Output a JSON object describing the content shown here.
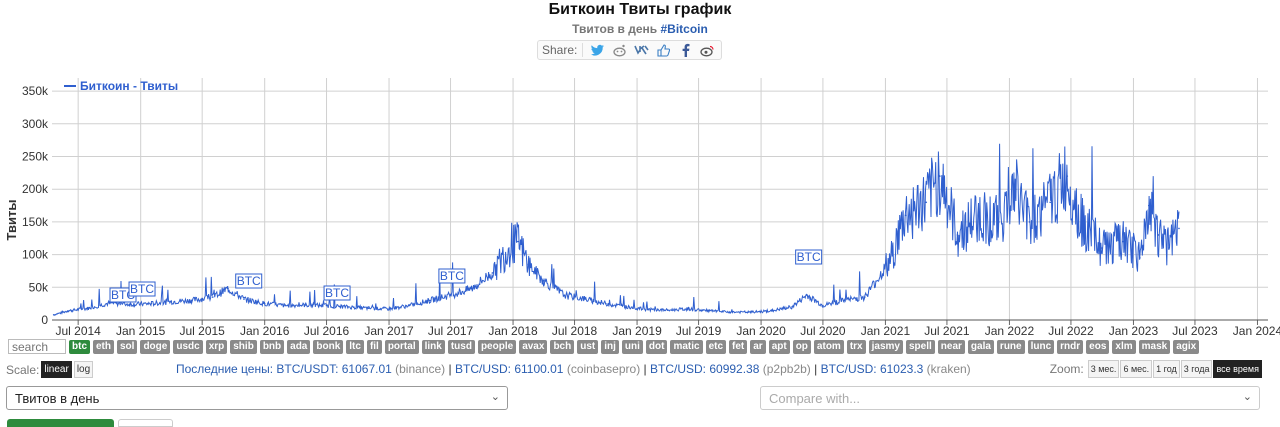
{
  "page": {
    "title": "Биткоин Твиты график",
    "subtitle_prefix": "Твитов в день",
    "subtitle_tag": "#Bitcoin",
    "share_label": "Share:",
    "share_icons": [
      "twitter-icon",
      "reddit-icon",
      "vk-icon",
      "like-icon",
      "facebook-icon",
      "weibo-icon"
    ]
  },
  "coins": {
    "search_placeholder": "search",
    "items": [
      "btc",
      "eth",
      "sol",
      "doge",
      "usdc",
      "xrp",
      "shib",
      "bnb",
      "ada",
      "bonk",
      "ltc",
      "fil",
      "portal",
      "link",
      "tusd",
      "people",
      "avax",
      "bch",
      "ust",
      "inj",
      "uni",
      "dot",
      "matic",
      "etc",
      "fet",
      "ar",
      "apt",
      "op",
      "atom",
      "trx",
      "jasmy",
      "spell",
      "near",
      "gala",
      "rune",
      "lunc",
      "rndr",
      "eos",
      "xlm",
      "mask",
      "agix"
    ],
    "active": "btc"
  },
  "scale": {
    "label": "Scale:",
    "linear": "linear",
    "log": "log",
    "selected": "linear"
  },
  "prices": {
    "label": "Последние цены:",
    "quotes": [
      {
        "pair": "BTC/USDT: 61067.01",
        "exchange": "(binance)"
      },
      {
        "pair": "BTC/USD: 61100.01",
        "exchange": "(coinbasepro)"
      },
      {
        "pair": "BTC/USD: 60992.38",
        "exchange": "(p2pb2b)"
      },
      {
        "pair": "BTC/USD: 61023.3",
        "exchange": "(kraken)"
      }
    ]
  },
  "zoom": {
    "label": "Zoom:",
    "options": [
      "3 мес.",
      "6 мес.",
      "1 год",
      "3 года",
      "все время"
    ],
    "selected": "все время"
  },
  "selects": {
    "metric": "Твитов в день",
    "compare_placeholder": "Compare with..."
  },
  "chart_data": {
    "type": "line",
    "legend": "Биткоин - Твиты",
    "ylabel": "Твиты",
    "ylim": [
      0,
      370000
    ],
    "yticks": [
      0,
      50000,
      100000,
      150000,
      200000,
      250000,
      300000,
      350000
    ],
    "ytick_labels": [
      "0",
      "50k",
      "100k",
      "150k",
      "200k",
      "250k",
      "300k",
      "350k"
    ],
    "xlim": [
      "2014-04-15",
      "2024-02-01"
    ],
    "xticks": [
      "2014-07-01",
      "2015-01-01",
      "2015-07-01",
      "2016-01-01",
      "2016-07-01",
      "2017-01-01",
      "2017-07-01",
      "2018-01-01",
      "2018-07-01",
      "2019-01-01",
      "2019-07-01",
      "2020-01-01",
      "2020-07-01",
      "2021-01-01",
      "2021-07-01",
      "2022-01-01",
      "2022-07-01",
      "2023-01-01",
      "2023-07-01",
      "2024-01-01"
    ],
    "xtick_labels": [
      "Jul 2014",
      "Jan 2015",
      "Jul 2015",
      "Jan 2016",
      "Jul 2016",
      "Jan 2017",
      "Jul 2017",
      "Jan 2018",
      "Jul 2018",
      "Jan 2019",
      "Jul 2019",
      "Jan 2020",
      "Jul 2020",
      "Jan 2021",
      "Jul 2021",
      "Jan 2022",
      "Jul 2022",
      "Jan 2023",
      "Jul 2023",
      "Jan 2024"
    ],
    "series": [
      {
        "name": "Биткоин - Твиты",
        "x": [
          "2014-04-20",
          "2014-06-01",
          "2014-08-01",
          "2014-10-01",
          "2014-12-01",
          "2015-02-01",
          "2015-04-01",
          "2015-06-01",
          "2015-08-01",
          "2015-09-15",
          "2015-11-01",
          "2016-01-01",
          "2016-03-01",
          "2016-05-01",
          "2016-07-01",
          "2016-09-01",
          "2016-11-01",
          "2017-01-01",
          "2017-03-01",
          "2017-05-01",
          "2017-07-01",
          "2017-09-01",
          "2017-11-01",
          "2017-12-20",
          "2018-01-15",
          "2018-02-15",
          "2018-04-01",
          "2018-06-01",
          "2018-08-01",
          "2018-10-01",
          "2018-12-01",
          "2019-02-01",
          "2019-04-01",
          "2019-06-01",
          "2019-08-01",
          "2019-10-01",
          "2019-12-01",
          "2020-02-01",
          "2020-04-01",
          "2020-05-15",
          "2020-07-01",
          "2020-09-01",
          "2020-11-01",
          "2021-01-15",
          "2021-03-01",
          "2021-05-01",
          "2021-06-10",
          "2021-08-01",
          "2021-10-01",
          "2021-12-01",
          "2022-01-20",
          "2022-03-01",
          "2022-05-01",
          "2022-06-20",
          "2022-08-01",
          "2022-10-01",
          "2022-12-01",
          "2023-01-20",
          "2023-02-15",
          "2023-03-15",
          "2023-04-15",
          "2023-05-15"
        ],
        "values": [
          8000,
          14000,
          18000,
          26000,
          24000,
          25000,
          28000,
          30000,
          35000,
          48000,
          32000,
          25000,
          22000,
          23000,
          22000,
          20000,
          18000,
          17000,
          22000,
          30000,
          38000,
          48000,
          72000,
          110000,
          120000,
          85000,
          60000,
          38000,
          32000,
          25000,
          20000,
          16000,
          15000,
          17000,
          14000,
          12000,
          12000,
          14000,
          20000,
          38000,
          22000,
          30000,
          35000,
          90000,
          160000,
          180000,
          220000,
          130000,
          160000,
          150000,
          200000,
          150000,
          180000,
          220000,
          150000,
          110000,
          120000,
          95000,
          175000,
          130000,
          110000,
          140000
        ]
      }
    ],
    "annotations": [
      {
        "x": "2014-11-10",
        "label": "BTC"
      },
      {
        "x": "2015-01-05",
        "label": "BTC"
      },
      {
        "x": "2015-11-15",
        "label": "BTC"
      },
      {
        "x": "2016-08-01",
        "label": "BTC"
      },
      {
        "x": "2017-07-05",
        "label": "BTC"
      },
      {
        "x": "2020-05-20",
        "label": "BTC"
      }
    ],
    "grid": true,
    "legend_position": "top-left"
  }
}
